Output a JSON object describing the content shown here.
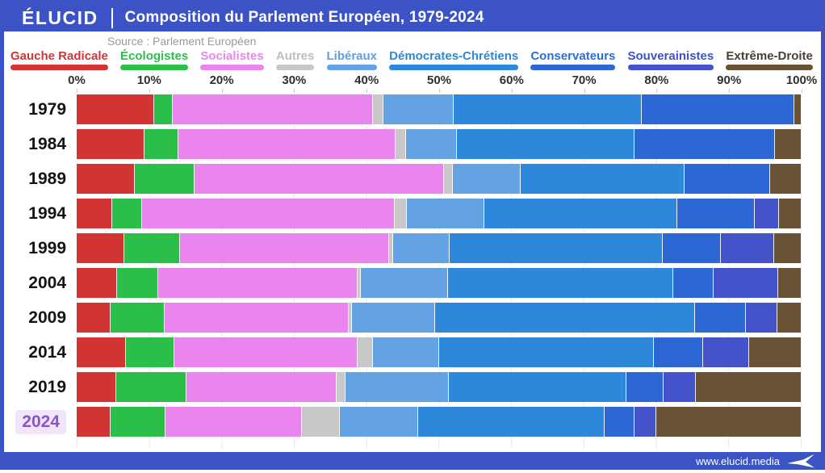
{
  "header": {
    "logo": "ÉLUCID",
    "title": "Composition du Parlement Européen, 1979-2024"
  },
  "source_note": "Source : Parlement Européen",
  "footer": {
    "website": "www.elucid.media"
  },
  "colors": {
    "frame_blue": "#3c53c5",
    "grid_line": "#e9e9e9",
    "year_label": "#141414",
    "highlight_text": "#8a55c8",
    "highlight_bg": "#f0e5fb",
    "source_text": "#9a9a9a",
    "axis_text": "#2f2f2f"
  },
  "legend": {
    "items": [
      {
        "label": "Gauche Radicale",
        "text_color": "#d23434",
        "bar_color": "#d23434"
      },
      {
        "label": "Écologistes",
        "text_color": "#2bbf4a",
        "bar_color": "#2bbf4a"
      },
      {
        "label": "Socialistes",
        "text_color": "#e985ec",
        "bar_color": "#e985ec"
      },
      {
        "label": "Autres",
        "text_color": "#bdbdbd",
        "bar_color": "#c8c8c8"
      },
      {
        "label": "Libéraux",
        "text_color": "#5ea0e0",
        "bar_color": "#63a3e3"
      },
      {
        "label": "Démocrates-Chrétiens",
        "text_color": "#2d87da",
        "bar_color": "#2d87da"
      },
      {
        "label": "Conservateurs",
        "text_color": "#2b6fd6",
        "bar_color": "#2c67d3"
      },
      {
        "label": "Souverainistes",
        "text_color": "#3b53c6",
        "bar_color": "#4553cb"
      },
      {
        "label": "Extrême-Droite",
        "text_color": "#4a3f33",
        "bar_color": "#6a5234"
      }
    ]
  },
  "chart_data": {
    "type": "bar",
    "stacked": true,
    "orientation": "horizontal",
    "title": "Composition du Parlement Européen, 1979-2024",
    "unit": "% of seats",
    "x_axis": {
      "min": 0,
      "max": 100,
      "ticks": [
        "0%",
        "10%",
        "20%",
        "30%",
        "40%",
        "50%",
        "60%",
        "70%",
        "80%",
        "90%",
        "100%"
      ]
    },
    "grid": true,
    "legend_position": "top",
    "categories": [
      "1979",
      "1984",
      "1989",
      "1994",
      "1999",
      "2004",
      "2009",
      "2014",
      "2019",
      "2024"
    ],
    "highlight_category": "2024",
    "series": [
      {
        "name": "Gauche Radicale",
        "color": "#d23434",
        "values": [
          10.7,
          9.4,
          8.0,
          4.9,
          6.6,
          5.6,
          4.7,
          6.8,
          5.5,
          4.7
        ]
      },
      {
        "name": "Écologistes",
        "color": "#2bbf4a",
        "values": [
          2.6,
          4.6,
          8.3,
          4.1,
          7.7,
          5.6,
          7.4,
          6.7,
          9.7,
          7.6
        ]
      },
      {
        "name": "Socialistes",
        "color": "#e985ec",
        "values": [
          27.6,
          30.0,
          34.4,
          34.9,
          28.8,
          27.5,
          25.4,
          25.3,
          20.7,
          18.8
        ]
      },
      {
        "name": "Autres",
        "color": "#c8c8c8",
        "values": [
          1.4,
          1.4,
          1.2,
          1.7,
          0.6,
          0.5,
          0.5,
          2.1,
          1.2,
          5.2
        ]
      },
      {
        "name": "Libéraux",
        "color": "#63a3e3",
        "values": [
          9.7,
          7.0,
          9.3,
          10.6,
          7.8,
          12.0,
          11.4,
          9.1,
          14.2,
          10.8
        ]
      },
      {
        "name": "Démocrates-Chrétiens",
        "color": "#2d87da",
        "values": [
          25.9,
          24.6,
          22.7,
          26.6,
          29.4,
          31.1,
          35.9,
          29.6,
          24.5,
          25.7
        ]
      },
      {
        "name": "Conservateurs",
        "color": "#2c67d3",
        "values": [
          21.1,
          19.3,
          11.8,
          10.7,
          8.0,
          5.6,
          7.0,
          6.8,
          5.2,
          4.1
        ]
      },
      {
        "name": "Souverainistes",
        "color": "#4553cb",
        "values": [
          0,
          0,
          0,
          3.4,
          7.3,
          8.9,
          4.4,
          6.4,
          4.4,
          3.1
        ]
      },
      {
        "name": "Extrême-Droite",
        "color": "#6a5234",
        "values": [
          1.0,
          3.7,
          4.3,
          3.1,
          3.8,
          3.2,
          3.3,
          7.2,
          14.6,
          20.0
        ]
      }
    ]
  }
}
